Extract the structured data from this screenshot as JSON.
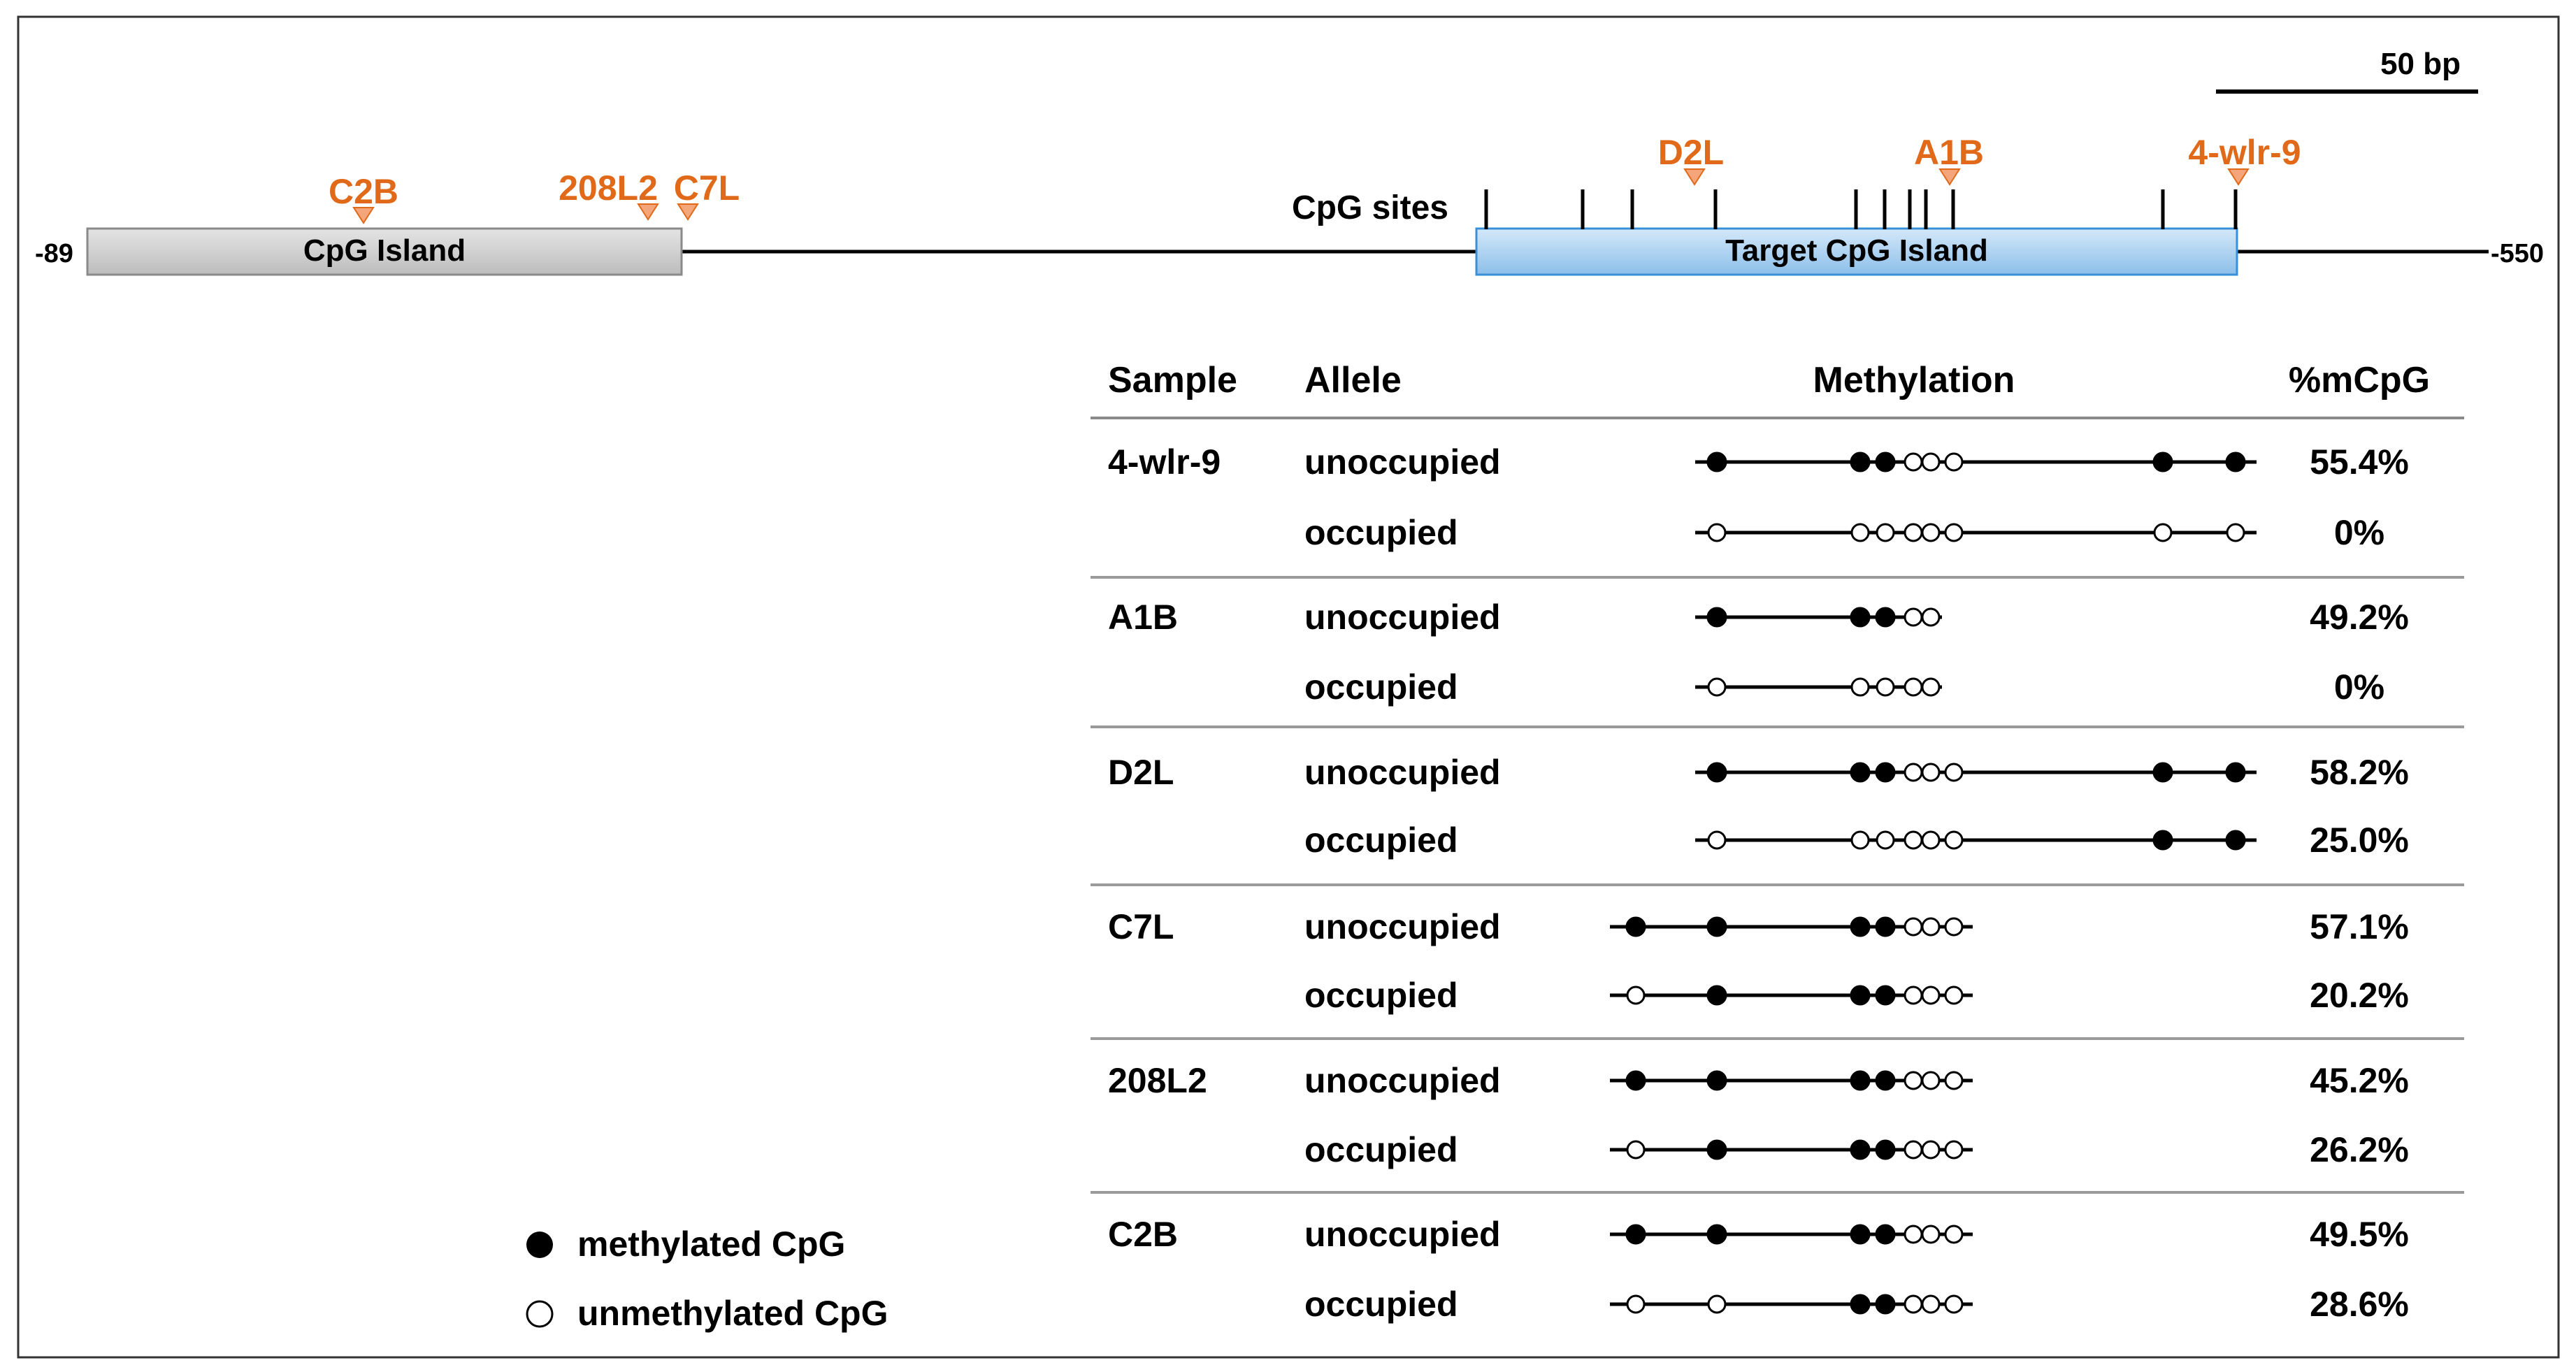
{
  "scale_bar": {
    "label": "50 bp"
  },
  "coords": {
    "left": "-89",
    "right": "-550"
  },
  "islands": {
    "cpg_island": "CpG Island",
    "target_cpg_island": "Target CpG Island"
  },
  "cpg_sites_label": "CpG sites",
  "markers": [
    "C2B",
    "208L2",
    "C7L",
    "D2L",
    "A1B",
    "4-wlr-9"
  ],
  "table": {
    "headers": {
      "sample": "Sample",
      "allele": "Allele",
      "methylation": "Methylation",
      "mcpg": "%mCpG"
    },
    "groups": [
      {
        "sample": "4-wlr-9",
        "rows": [
          {
            "allele": "unoccupied",
            "pct": "55.4%",
            "sites": [
              1,
              1,
              1,
              0,
              0,
              0,
              1,
              1
            ]
          },
          {
            "allele": "occupied",
            "pct": "0%",
            "sites": [
              0,
              0,
              0,
              0,
              0,
              0,
              0,
              0
            ]
          }
        ]
      },
      {
        "sample": "A1B",
        "rows": [
          {
            "allele": "unoccupied",
            "pct": "49.2%",
            "sites": [
              1,
              1,
              1,
              0,
              0
            ]
          },
          {
            "allele": "occupied",
            "pct": "0%",
            "sites": [
              0,
              0,
              0,
              0,
              0
            ]
          }
        ]
      },
      {
        "sample": "D2L",
        "rows": [
          {
            "allele": "unoccupied",
            "pct": "58.2%",
            "sites": [
              1,
              1,
              1,
              0,
              0,
              0,
              1,
              1
            ]
          },
          {
            "allele": "occupied",
            "pct": "25.0%",
            "sites": [
              0,
              0,
              0,
              0,
              0,
              0,
              1,
              1
            ]
          }
        ]
      },
      {
        "sample": "C7L",
        "rows": [
          {
            "allele": "unoccupied",
            "pct": "57.1%",
            "sites": [
              1,
              1,
              1,
              1,
              0,
              0,
              0
            ]
          },
          {
            "allele": "occupied",
            "pct": "20.2%",
            "sites": [
              0,
              1,
              1,
              1,
              0,
              0,
              0
            ]
          }
        ]
      },
      {
        "sample": "208L2",
        "rows": [
          {
            "allele": "unoccupied",
            "pct": "45.2%",
            "sites": [
              1,
              1,
              1,
              1,
              0,
              0,
              0
            ]
          },
          {
            "allele": "occupied",
            "pct": "26.2%",
            "sites": [
              0,
              1,
              1,
              1,
              0,
              0,
              0
            ]
          }
        ]
      },
      {
        "sample": "C2B",
        "rows": [
          {
            "allele": "unoccupied",
            "pct": "49.5%",
            "sites": [
              1,
              1,
              1,
              1,
              0,
              0,
              0
            ]
          },
          {
            "allele": "occupied",
            "pct": "28.6%",
            "sites": [
              0,
              0,
              1,
              1,
              0,
              0,
              0
            ]
          }
        ]
      }
    ]
  },
  "legend": {
    "methylated": "methylated CpG",
    "unmethylated": "unmethylated CpG"
  },
  "colors": {
    "accent": "#E06A1A",
    "marker_fill": "#F4A57A",
    "island_gray": "#D0D0D0",
    "island_blue": "#A9D0F0"
  }
}
